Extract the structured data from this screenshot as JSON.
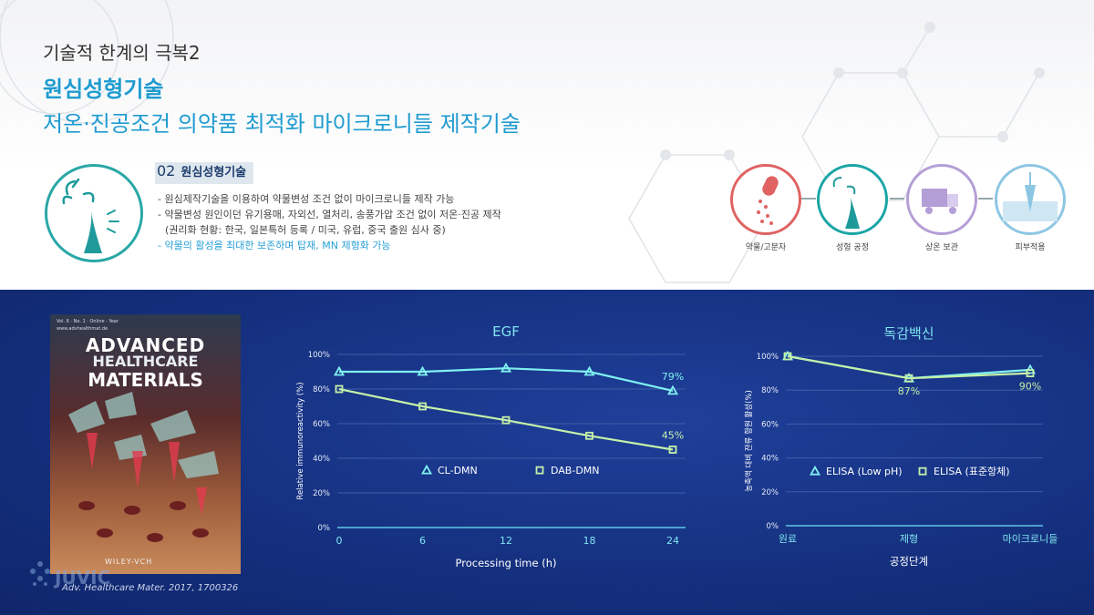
{
  "header": {
    "subtitle": "기술적 한계의 극복2",
    "title": "원심성형기술",
    "description": "저온·진공조건 의약품 최적화 마이크로니들 제작기술"
  },
  "section": {
    "number": "02",
    "name": "원심성형기술",
    "bullets": [
      "- 원심제작기술을 이용하여 약물변성 조건 없이 마이크로니들 제작 가능",
      "- 약물변성 원인이던 유기용매, 자외선, 열처리, 송풍가압 조건 없이 저온·진공 제작",
      "(권리화 현황: 한국, 일본특허 등록 / 미국, 유럽, 중국 출원 심사 중)",
      "- 약물의 활성을 최대한 보존하며 탑재, MN 제형화 가능"
    ]
  },
  "process_steps": [
    {
      "label": "약물/고분자",
      "color": "#e06262"
    },
    {
      "label": "성형 공정",
      "color": "#1aa5a5"
    },
    {
      "label": "상온 보관",
      "color": "#b49ed6"
    },
    {
      "label": "피부적용",
      "color": "#8cc6e3"
    }
  ],
  "journal": {
    "issue": "Vol. 6 · No. 1 · Online · Year",
    "url": "www.advhealthmat.de",
    "line1": "ADVANCED",
    "line2": "HEALTHCARE",
    "line3": "MATERIALS",
    "publisher": "WILEY-VCH",
    "citation": "Adv. Healthcare Mater. 2017, 1700326"
  },
  "watermark": "JUVIC",
  "chart_data": [
    {
      "type": "line",
      "title": "EGF",
      "xlabel": "Processing time (h)",
      "ylabel": "Relative immunoreactivity (%)",
      "x": [
        0,
        6,
        12,
        18,
        24
      ],
      "xticks": [
        "0",
        "6",
        "12",
        "18",
        "24"
      ],
      "yticks": [
        "0%",
        "20%",
        "40%",
        "60%",
        "80%",
        "100%"
      ],
      "ylim": [
        0,
        100
      ],
      "series": [
        {
          "name": "CL-DMN",
          "values": [
            90,
            90,
            92,
            90,
            79
          ],
          "color": "#7ff0f0",
          "marker": "triangle"
        },
        {
          "name": "DAB-DMN",
          "values": [
            80,
            70,
            62,
            53,
            45
          ],
          "color": "#c5f0a8",
          "marker": "square"
        }
      ],
      "annotations": [
        {
          "text": "79%",
          "series": 0,
          "index": 4,
          "color": "#7ff0f0"
        },
        {
          "text": "45%",
          "series": 1,
          "index": 4,
          "color": "#c5f0a8"
        }
      ],
      "legend": "center"
    },
    {
      "type": "line",
      "title": "독감백신",
      "xlabel": "공정단계",
      "ylabel": "농축액 대비 잔류 항원 활성(%)",
      "categories": [
        "원료",
        "제형",
        "마이크로니들"
      ],
      "yticks": [
        "0%",
        "20%",
        "40%",
        "60%",
        "80%",
        "100%"
      ],
      "ylim": [
        0,
        100
      ],
      "series": [
        {
          "name": "ELISA (Low pH)",
          "values": [
            100,
            87,
            92
          ],
          "color": "#7ff0f0",
          "marker": "triangle"
        },
        {
          "name": "ELISA (표준항체)",
          "values": [
            100,
            87,
            90
          ],
          "color": "#c5f0a8",
          "marker": "square"
        }
      ],
      "annotations": [
        {
          "text": "87%",
          "series": 1,
          "index": 1,
          "color": "#c5f0a8"
        },
        {
          "text": "90%",
          "series": 1,
          "index": 2,
          "color": "#c5f0a8"
        }
      ],
      "legend": "center"
    }
  ]
}
